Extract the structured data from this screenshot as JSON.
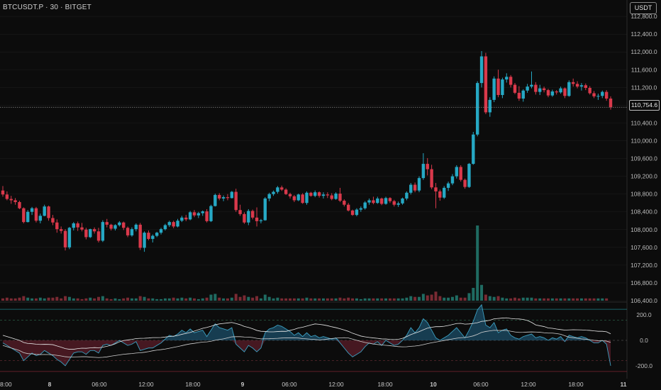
{
  "header": {
    "symbol": "BTCUSDT.P · 30 · BITGET",
    "currency": "USDT"
  },
  "colors": {
    "background": "#0c0c0c",
    "up": "#26a8c4",
    "down": "#d9394b",
    "grid": "#1f1f1f",
    "last_price_line": "#8d8d8d"
  },
  "chart_data": {
    "type": "candlestick",
    "timeframe": "30",
    "price_axis": {
      "ticks": [
        "106,400.0",
        "106,800.0",
        "107,200.0",
        "107,600.0",
        "108,000.0",
        "108,400.0",
        "108,800.0",
        "109,200.0",
        "109,600.0",
        "110,000.0",
        "110,400.0",
        "110,800.0",
        "111,200.0",
        "111,600.0",
        "112,000.0",
        "112,400.0",
        "112,800.0"
      ],
      "ylim": [
        106400,
        112850
      ]
    },
    "last_price": {
      "label": "110,754.6",
      "value": 110754.6
    },
    "time_axis": {
      "labels": [
        "8:00",
        "8",
        "06:00",
        "12:00",
        "18:00",
        "9",
        "06:00",
        "12:00",
        "18:00",
        "10",
        "06:00",
        "12:00",
        "18:00",
        "11"
      ],
      "bold": [
        false,
        true,
        false,
        false,
        false,
        true,
        false,
        false,
        false,
        true,
        false,
        false,
        false,
        true
      ]
    },
    "ohlc": [
      [
        108880,
        108980,
        108740,
        108790
      ],
      [
        108790,
        108860,
        108660,
        108690
      ],
      [
        108690,
        108760,
        108580,
        108660
      ],
      [
        108660,
        108710,
        108560,
        108620
      ],
      [
        108620,
        108650,
        108460,
        108480
      ],
      [
        108480,
        108500,
        108140,
        108170
      ],
      [
        108170,
        108440,
        108160,
        108400
      ],
      [
        108400,
        108510,
        108330,
        108480
      ],
      [
        108480,
        108510,
        108160,
        108200
      ],
      [
        108200,
        108360,
        108140,
        108310
      ],
      [
        108310,
        108560,
        108300,
        108520
      ],
      [
        108520,
        108540,
        108200,
        108260
      ],
      [
        108260,
        108330,
        108100,
        108160
      ],
      [
        108160,
        108230,
        107930,
        108010
      ],
      [
        108010,
        108070,
        107910,
        107970
      ],
      [
        107970,
        108010,
        107530,
        107600
      ],
      [
        107600,
        108060,
        107560,
        108040
      ],
      [
        108040,
        108170,
        107980,
        108140
      ],
      [
        108140,
        108180,
        107970,
        108050
      ],
      [
        108050,
        108150,
        107960,
        108000
      ],
      [
        108000,
        108040,
        107780,
        107830
      ],
      [
        107830,
        108020,
        107810,
        108010
      ],
      [
        108010,
        108050,
        107910,
        107960
      ],
      [
        107960,
        108040,
        107710,
        107750
      ],
      [
        107750,
        108210,
        107720,
        108170
      ],
      [
        108170,
        108240,
        108050,
        108110
      ],
      [
        108110,
        108130,
        107980,
        108020
      ],
      [
        108020,
        108120,
        107980,
        108100
      ],
      [
        108100,
        108190,
        108070,
        108160
      ],
      [
        108160,
        108180,
        107990,
        108040
      ],
      [
        108040,
        108070,
        107830,
        107870
      ],
      [
        107870,
        108050,
        107840,
        108010
      ],
      [
        108010,
        108140,
        107960,
        108110
      ],
      [
        108110,
        108150,
        107540,
        107590
      ],
      [
        107590,
        107960,
        107500,
        107930
      ],
      [
        107930,
        107980,
        107760,
        107790
      ],
      [
        107790,
        107890,
        107710,
        107860
      ],
      [
        107860,
        107950,
        107830,
        107930
      ],
      [
        107930,
        108040,
        107890,
        108010
      ],
      [
        108010,
        108130,
        107980,
        108100
      ],
      [
        108100,
        108200,
        108060,
        108170
      ],
      [
        108170,
        108200,
        108030,
        108070
      ],
      [
        108070,
        108240,
        108050,
        108200
      ],
      [
        108200,
        108310,
        108170,
        108270
      ],
      [
        108270,
        108330,
        108190,
        108230
      ],
      [
        108230,
        108420,
        108210,
        108390
      ],
      [
        108390,
        108440,
        108280,
        108320
      ],
      [
        108320,
        108400,
        108260,
        108370
      ],
      [
        108370,
        108430,
        108310,
        108410
      ],
      [
        108410,
        108460,
        108160,
        108190
      ],
      [
        108190,
        108560,
        108170,
        108530
      ],
      [
        108530,
        108810,
        108520,
        108780
      ],
      [
        108780,
        108820,
        108660,
        108700
      ],
      [
        108700,
        108770,
        108640,
        108730
      ],
      [
        108730,
        108800,
        108660,
        108710
      ],
      [
        108710,
        108870,
        108700,
        108850
      ],
      [
        108850,
        108920,
        108400,
        108440
      ],
      [
        108440,
        108560,
        108310,
        108350
      ],
      [
        108350,
        108390,
        108130,
        108160
      ],
      [
        108160,
        108460,
        108100,
        108420
      ],
      [
        108420,
        108450,
        108230,
        108270
      ],
      [
        108270,
        108500,
        108070,
        108190
      ],
      [
        108190,
        108240,
        108140,
        108210
      ],
      [
        108210,
        108730,
        108200,
        108700
      ],
      [
        108700,
        108830,
        108640,
        108800
      ],
      [
        108800,
        108880,
        108760,
        108850
      ],
      [
        108850,
        108980,
        108810,
        108950
      ],
      [
        108950,
        108990,
        108870,
        108900
      ],
      [
        108900,
        108930,
        108780,
        108800
      ],
      [
        108800,
        108830,
        108700,
        108750
      ],
      [
        108750,
        108780,
        108620,
        108660
      ],
      [
        108660,
        108810,
        108640,
        108790
      ],
      [
        108790,
        108820,
        108580,
        108600
      ],
      [
        108600,
        108860,
        108560,
        108830
      ],
      [
        108830,
        108850,
        108740,
        108760
      ],
      [
        108760,
        108880,
        108730,
        108840
      ],
      [
        108840,
        108860,
        108720,
        108760
      ],
      [
        108760,
        108840,
        108700,
        108790
      ],
      [
        108790,
        108840,
        108710,
        108770
      ],
      [
        108770,
        108820,
        108660,
        108690
      ],
      [
        108690,
        108840,
        108670,
        108810
      ],
      [
        108810,
        108940,
        108620,
        108650
      ],
      [
        108650,
        108680,
        108520,
        108560
      ],
      [
        108560,
        108600,
        108410,
        108430
      ],
      [
        108430,
        108450,
        108310,
        108330
      ],
      [
        108330,
        108480,
        108300,
        108450
      ],
      [
        108450,
        108520,
        108400,
        108480
      ],
      [
        108480,
        108640,
        108450,
        108610
      ],
      [
        108610,
        108700,
        108560,
        108660
      ],
      [
        108660,
        108740,
        108570,
        108600
      ],
      [
        108600,
        108740,
        108580,
        108700
      ],
      [
        108700,
        108720,
        108550,
        108580
      ],
      [
        108580,
        108740,
        108560,
        108710
      ],
      [
        108710,
        108730,
        108600,
        108640
      ],
      [
        108640,
        108670,
        108520,
        108560
      ],
      [
        108560,
        108630,
        108510,
        108590
      ],
      [
        108590,
        108720,
        108560,
        108700
      ],
      [
        108700,
        108860,
        108660,
        108830
      ],
      [
        108830,
        109050,
        108790,
        109010
      ],
      [
        109010,
        109060,
        108840,
        108880
      ],
      [
        108880,
        109200,
        108840,
        109160
      ],
      [
        109160,
        109720,
        109120,
        109480
      ],
      [
        109480,
        109610,
        109220,
        109360
      ],
      [
        109360,
        109460,
        108910,
        108950
      ],
      [
        108950,
        109050,
        108480,
        108860
      ],
      [
        108860,
        108900,
        108650,
        108720
      ],
      [
        108720,
        108980,
        108690,
        108940
      ],
      [
        108940,
        109080,
        108870,
        109040
      ],
      [
        109040,
        109250,
        109000,
        109200
      ],
      [
        109200,
        109450,
        109150,
        109410
      ],
      [
        109410,
        109450,
        109080,
        109120
      ],
      [
        109120,
        109150,
        108920,
        108960
      ],
      [
        108960,
        109500,
        108940,
        109480
      ],
      [
        109480,
        110200,
        109460,
        110140
      ],
      [
        110140,
        111340,
        110100,
        111300
      ],
      [
        111300,
        112020,
        111200,
        111900
      ],
      [
        111900,
        111980,
        110600,
        110640
      ],
      [
        110640,
        110980,
        110540,
        110920
      ],
      [
        110920,
        111450,
        110870,
        111400
      ],
      [
        111400,
        111600,
        110980,
        111030
      ],
      [
        111030,
        111420,
        110960,
        111380
      ],
      [
        111380,
        111520,
        111310,
        111440
      ],
      [
        111440,
        111480,
        111200,
        111260
      ],
      [
        111260,
        111300,
        111050,
        111080
      ],
      [
        111080,
        111230,
        110900,
        110950
      ],
      [
        110950,
        111160,
        110880,
        111130
      ],
      [
        111130,
        111280,
        111080,
        111220
      ],
      [
        111220,
        111560,
        111180,
        111260
      ],
      [
        111260,
        111320,
        111040,
        111100
      ],
      [
        111100,
        111260,
        111030,
        111180
      ],
      [
        111180,
        111220,
        111090,
        111140
      ],
      [
        111140,
        111170,
        110980,
        111020
      ],
      [
        111020,
        111150,
        110990,
        111110
      ],
      [
        111110,
        111140,
        111040,
        111090
      ],
      [
        111090,
        111220,
        111060,
        111180
      ],
      [
        111180,
        111200,
        110960,
        111010
      ],
      [
        111010,
        111360,
        110990,
        111320
      ],
      [
        111320,
        111400,
        111220,
        111280
      ],
      [
        111280,
        111340,
        111180,
        111220
      ],
      [
        111220,
        111300,
        111130,
        111250
      ],
      [
        111250,
        111290,
        111140,
        111190
      ],
      [
        111190,
        111230,
        111040,
        111070
      ],
      [
        111070,
        111120,
        110960,
        111000
      ],
      [
        111000,
        111060,
        110920,
        111010
      ],
      [
        111010,
        111130,
        110960,
        111100
      ],
      [
        111100,
        111140,
        110900,
        110950
      ],
      [
        110950,
        111000,
        110700,
        110755
      ]
    ],
    "volume": [
      3,
      4,
      3,
      3,
      4,
      6,
      4,
      3,
      3,
      4,
      3,
      4,
      4,
      5,
      3,
      6,
      5,
      3,
      3,
      2,
      3,
      4,
      3,
      5,
      6,
      3,
      2,
      3,
      2,
      3,
      4,
      3,
      3,
      6,
      5,
      3,
      3,
      2,
      2,
      3,
      3,
      4,
      3,
      4,
      3,
      4,
      3,
      2,
      3,
      4,
      8,
      9,
      4,
      3,
      3,
      4,
      9,
      5,
      7,
      5,
      4,
      6,
      3,
      8,
      5,
      3,
      4,
      3,
      3,
      3,
      3,
      3,
      3,
      4,
      3,
      3,
      3,
      3,
      3,
      3,
      3,
      4,
      3,
      4,
      3,
      3,
      2,
      3,
      3,
      3,
      3,
      3,
      3,
      3,
      3,
      3,
      3,
      4,
      6,
      5,
      5,
      9,
      7,
      8,
      12,
      6,
      4,
      4,
      5,
      7,
      4,
      4,
      10,
      17,
      100,
      21,
      8,
      6,
      5,
      6,
      4,
      3,
      3,
      4,
      3,
      4,
      4,
      4,
      3,
      3,
      3,
      3,
      3,
      3,
      3,
      3,
      3,
      3,
      3,
      3,
      3,
      3,
      3,
      3,
      3,
      3
    ],
    "oscillator": {
      "ticks": [
        "200.0",
        "0.0",
        "-200.0"
      ],
      "ylim": [
        -290,
        290
      ],
      "upper_level": 200,
      "mid_level": 0,
      "lower_level": -200,
      "line": [
        -20,
        -40,
        -60,
        -80,
        -100,
        -160,
        -130,
        -100,
        -120,
        -110,
        -80,
        -100,
        -120,
        -150,
        -170,
        -200,
        -150,
        -100,
        -90,
        -90,
        -110,
        -80,
        -80,
        -100,
        -40,
        -30,
        -40,
        -20,
        0,
        -20,
        -40,
        -30,
        -10,
        -80,
        -70,
        -60,
        -60,
        -40,
        -20,
        10,
        40,
        30,
        50,
        80,
        60,
        90,
        60,
        70,
        80,
        30,
        80,
        130,
        100,
        90,
        80,
        100,
        -30,
        -60,
        -90,
        -40,
        -60,
        -90,
        -60,
        60,
        90,
        100,
        120,
        110,
        90,
        70,
        40,
        60,
        30,
        60,
        30,
        40,
        20,
        30,
        20,
        10,
        20,
        -20,
        -60,
        -100,
        -130,
        -110,
        -90,
        -50,
        -20,
        -30,
        -10,
        -40,
        0,
        -20,
        -40,
        -30,
        0,
        40,
        100,
        60,
        100,
        170,
        140,
        80,
        20,
        0,
        20,
        40,
        70,
        100,
        60,
        20,
        80,
        150,
        240,
        280,
        120,
        100,
        140,
        60,
        80,
        90,
        40,
        20,
        10,
        30,
        40,
        50,
        20,
        30,
        20,
        0,
        20,
        10,
        30,
        -10,
        40,
        30,
        20,
        30,
        20,
        0,
        -20,
        -20,
        0,
        -30,
        -200
      ]
    }
  }
}
